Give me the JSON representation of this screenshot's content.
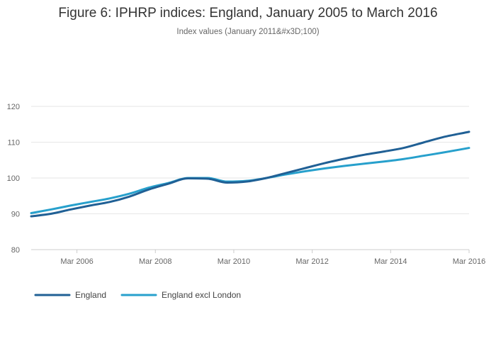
{
  "chart_data": {
    "type": "line",
    "title": "Figure 6: IPHRP indices: England, January 2005 to March 2016",
    "subtitle": "Index values (January 2011&#x3D;100)",
    "xlabel": "",
    "ylabel": "",
    "x_range": [
      "2005-01",
      "2016-03"
    ],
    "ylim": [
      80,
      120
    ],
    "y_ticks": [
      80,
      90,
      100,
      110,
      120
    ],
    "x_ticks": [
      {
        "date": "2006-03",
        "label": "Mar 2006"
      },
      {
        "date": "2008-03",
        "label": "Mar 2008"
      },
      {
        "date": "2010-03",
        "label": "Mar 2010"
      },
      {
        "date": "2012-03",
        "label": "Mar 2012"
      },
      {
        "date": "2014-03",
        "label": "Mar 2014"
      },
      {
        "date": "2016-03",
        "label": "Mar 2016"
      }
    ],
    "grid": "horizontal",
    "legend_position": "bottom-left",
    "series": [
      {
        "name": "England",
        "color": "#206095",
        "points": [
          [
            "2005-01",
            89.3
          ],
          [
            "2005-07",
            90.0
          ],
          [
            "2006-01",
            91.2
          ],
          [
            "2006-07",
            92.3
          ],
          [
            "2007-01",
            93.3
          ],
          [
            "2007-07",
            94.8
          ],
          [
            "2008-01",
            96.8
          ],
          [
            "2008-07",
            98.4
          ],
          [
            "2009-01",
            99.9
          ],
          [
            "2009-07",
            99.8
          ],
          [
            "2010-01",
            98.7
          ],
          [
            "2010-07",
            99.0
          ],
          [
            "2011-01",
            100.0
          ],
          [
            "2011-07",
            101.4
          ],
          [
            "2012-01",
            102.8
          ],
          [
            "2012-07",
            104.2
          ],
          [
            "2013-01",
            105.4
          ],
          [
            "2013-07",
            106.5
          ],
          [
            "2014-01",
            107.4
          ],
          [
            "2014-07",
            108.4
          ],
          [
            "2015-01",
            109.9
          ],
          [
            "2015-07",
            111.4
          ],
          [
            "2016-03",
            112.9
          ]
        ]
      },
      {
        "name": "England excl London",
        "color": "#27a0cc",
        "points": [
          [
            "2005-01",
            90.2
          ],
          [
            "2005-07",
            91.2
          ],
          [
            "2006-01",
            92.3
          ],
          [
            "2006-07",
            93.3
          ],
          [
            "2007-01",
            94.3
          ],
          [
            "2007-07",
            95.6
          ],
          [
            "2008-01",
            97.3
          ],
          [
            "2008-07",
            98.6
          ],
          [
            "2009-01",
            100.0
          ],
          [
            "2009-07",
            100.0
          ],
          [
            "2010-01",
            99.0
          ],
          [
            "2010-07",
            99.2
          ],
          [
            "2011-01",
            100.0
          ],
          [
            "2011-07",
            101.0
          ],
          [
            "2012-01",
            101.9
          ],
          [
            "2012-07",
            102.7
          ],
          [
            "2013-01",
            103.4
          ],
          [
            "2013-07",
            104.0
          ],
          [
            "2014-01",
            104.6
          ],
          [
            "2014-07",
            105.3
          ],
          [
            "2015-01",
            106.2
          ],
          [
            "2015-07",
            107.1
          ],
          [
            "2016-03",
            108.4
          ]
        ]
      }
    ]
  }
}
